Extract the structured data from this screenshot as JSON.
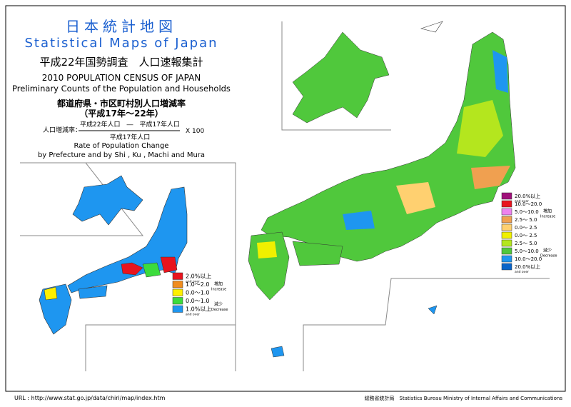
{
  "header": {
    "title_ja": "日本統計地図",
    "title_en": "Statistical Maps of Japan",
    "census_ja": "平成22年国勢調査　人口速報集計",
    "census_en": "2010 POPULATION CENSUS OF JAPAN",
    "subtitle_en": "Preliminary Counts of the Population and Households",
    "topic_ja": "都道府県・市区町村別人口増減率",
    "period_ja": "（平成17年～22年）"
  },
  "formula": {
    "label": "人口増減率：",
    "numerator": "平成22年人口　―　平成17年人口",
    "denominator": "平成17年人口",
    "multiplier": "X 100"
  },
  "topic_en": [
    "Rate of Population Change",
    "by Prefecture and by Shi , Ku , Machi and Mura"
  ],
  "prefecture_legend": {
    "items": [
      {
        "label": "2.0%以上",
        "note": "and over",
        "color": "#e8141e"
      },
      {
        "label": "1.0～2.0",
        "color": "#f08c1e"
      },
      {
        "label": "0.0～1.0",
        "color": "#fff000"
      },
      {
        "label": "0.0～1.0",
        "color": "#3cdc3c"
      },
      {
        "label": "1.0%以上",
        "note": "and over",
        "color": "#1e96f0"
      }
    ],
    "increase": [
      "増加",
      "Increase"
    ],
    "decrease": [
      "減少",
      "Decrease"
    ]
  },
  "municipality_legend": {
    "items": [
      {
        "label": "20.0%以上",
        "note": "and over",
        "color": "#a0107a"
      },
      {
        "label": "10.0～20.0",
        "color": "#e8141e"
      },
      {
        "label": "5.0～10.0",
        "color": "#ee82ee"
      },
      {
        "label": "2.5～ 5.0",
        "color": "#f0a050"
      },
      {
        "label": "0.0～ 2.5",
        "color": "#ffd070"
      },
      {
        "label": "0.0～ 2.5",
        "color": "#f0f000"
      },
      {
        "label": "2.5～ 5.0",
        "color": "#b4e61e"
      },
      {
        "label": "5.0～10.0",
        "color": "#50c83c"
      },
      {
        "label": "10.0～20.0",
        "color": "#1e96f0"
      },
      {
        "label": "20.0%以上",
        "note": "and over",
        "color": "#0a64c8"
      }
    ],
    "increase": [
      "増加",
      "Increase"
    ],
    "decrease": [
      "減少",
      "Decrease"
    ]
  },
  "footer": {
    "url": "URL : http://www.stat.go.jp/data/chiri/map/index.htm",
    "agency": "総務省統計局　Statistics Bureau Ministry of Internal Affairs and Communications"
  }
}
